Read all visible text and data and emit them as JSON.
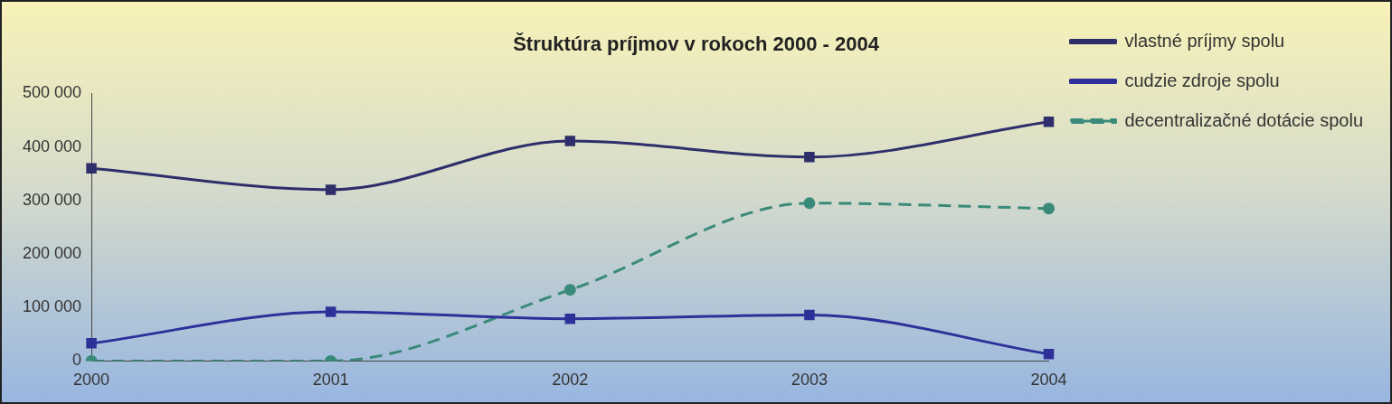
{
  "chart_data": {
    "type": "line",
    "title": "Štruktúra príjmov v rokoch 2000 - 2004",
    "categories": [
      "2000",
      "2001",
      "2002",
      "2003",
      "2004"
    ],
    "series": [
      {
        "name": "vlastné príjmy spolu",
        "color": "#2e2e6a",
        "values": [
          360000,
          320000,
          411000,
          381000,
          447000
        ],
        "marker": "square",
        "line_style": "solid"
      },
      {
        "name": "cudzie zdroje spolu",
        "color": "#2e309a",
        "values": [
          33000,
          92000,
          79000,
          86000,
          13000
        ],
        "marker": "square",
        "line_style": "solid"
      },
      {
        "name": "decentralizačné dotácie spolu",
        "color": "#3a8a7a",
        "values": [
          0,
          0,
          133000,
          295000,
          285000
        ],
        "marker": "circle",
        "line_style": "dashed"
      }
    ],
    "ylim": [
      0,
      500000
    ],
    "yticks": [
      {
        "value": 0,
        "label": "0"
      },
      {
        "value": 100000,
        "label": "100 000"
      },
      {
        "value": 200000,
        "label": "200 000"
      },
      {
        "value": 300000,
        "label": "300 000"
      },
      {
        "value": 400000,
        "label": "400 000"
      },
      {
        "value": 500000,
        "label": "500 000"
      }
    ],
    "grid": false,
    "legend": "right"
  }
}
